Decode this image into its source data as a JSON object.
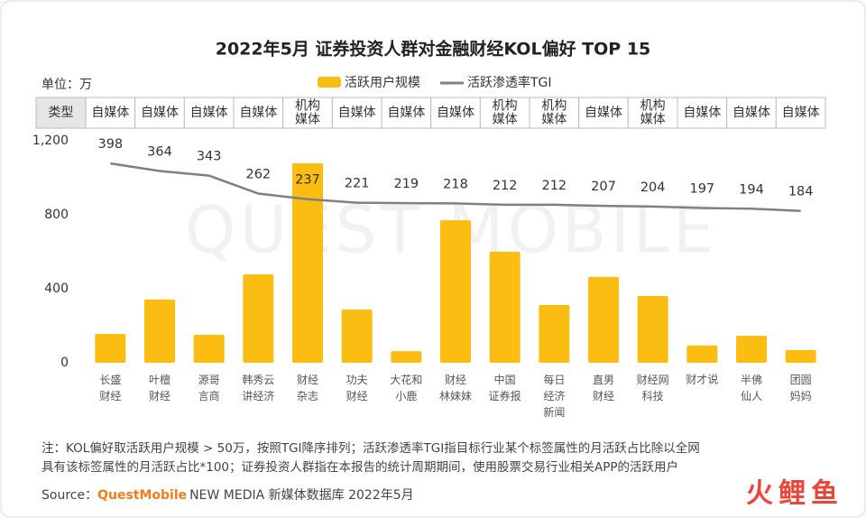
{
  "chart_data": {
    "type": "bar",
    "title": "2022年5月 证券投资人群对金融财经KOL偏好 TOP 15",
    "unit_label": "单位：万",
    "watermark": "QUEST MOBILE",
    "type_header": "类型",
    "types": [
      "自媒体",
      "自媒体",
      "自媒体",
      "自媒体",
      "机构\n媒体",
      "自媒体",
      "自媒体",
      "自媒体",
      "机构\n媒体",
      "机构\n媒体",
      "自媒体",
      "机构\n媒体",
      "自媒体",
      "自媒体",
      "自媒体"
    ],
    "categories": [
      "长盛\n财经",
      "叶檀\n财经",
      "源哥\n言商",
      "韩秀云\n讲经济",
      "财经\n杂志",
      "功夫\n财经",
      "大花和\n小鹿",
      "财经\n林妹妹",
      "中国\n证券报",
      "每日\n经济\n新闻",
      "直男\n财经",
      "财经网\n科技",
      "财才说",
      "半佛\n仙人",
      "团圆\n妈妈"
    ],
    "series": [
      {
        "name": "活跃用户规模",
        "type": "bar",
        "color": "#fbbd12",
        "values": [
          156,
          342,
          151,
          478,
          1078,
          288,
          63,
          771,
          600,
          312,
          464,
          361,
          93,
          146,
          68
        ]
      },
      {
        "name": "活跃渗透率TGI",
        "type": "line",
        "axis": "y2",
        "color": "#808080",
        "values": [
          398,
          364,
          343,
          262,
          237,
          221,
          219,
          218,
          212,
          212,
          207,
          204,
          197,
          194,
          184
        ]
      }
    ],
    "ylim": [
      0,
      1200
    ],
    "yticks": [
      0,
      400,
      800,
      {
        "value": 1200,
        "label": "1,200"
      }
    ],
    "y2lim": [
      -500,
      500
    ],
    "notes": [
      "注：KOL偏好取活跃用户规模 > 50万，按照TGI降序排列；活跃渗透率TGI指目标行业某个标签属性的月活跃占比除以全网",
      "具有该标签属性的月活跃占比*100；证券投资人群指在本报告的统计周期期间，使用股票交易行业相关APP的活跃用户"
    ],
    "source_label": "Source：",
    "source_brand": "QuestMobile",
    "source_text": "NEW MEDIA 新媒体数据库  2022年5月",
    "logo": "火鲤鱼"
  }
}
